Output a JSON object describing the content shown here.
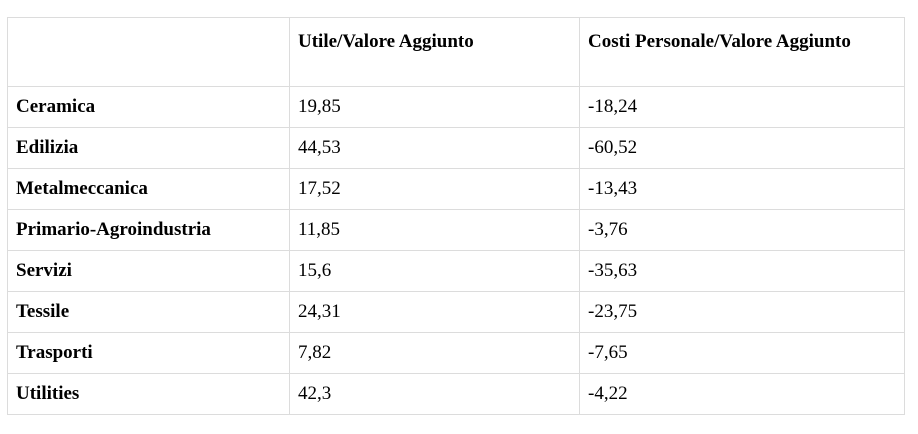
{
  "table": {
    "headers": [
      "",
      "Utile/Valore Aggiunto",
      "Costi Personale/Valore Aggiunto"
    ],
    "rows": [
      {
        "sector": "Ceramica",
        "utile": "19,85",
        "costi": "-18,24"
      },
      {
        "sector": "Edilizia",
        "utile": "44,53",
        "costi": "-60,52"
      },
      {
        "sector": "Metalmeccanica",
        "utile": "17,52",
        "costi": "-13,43"
      },
      {
        "sector": "Primario-Agroindustria",
        "utile": "11,85",
        "costi": "-3,76"
      },
      {
        "sector": "Servizi",
        "utile": "15,6",
        "costi": "-35,63"
      },
      {
        "sector": "Tessile",
        "utile": "24,31",
        "costi": "-23,75"
      },
      {
        "sector": "Trasporti",
        "utile": "7,82",
        "costi": "-7,65"
      },
      {
        "sector": "Utilities",
        "utile": "42,3",
        "costi": "-4,22"
      }
    ]
  }
}
